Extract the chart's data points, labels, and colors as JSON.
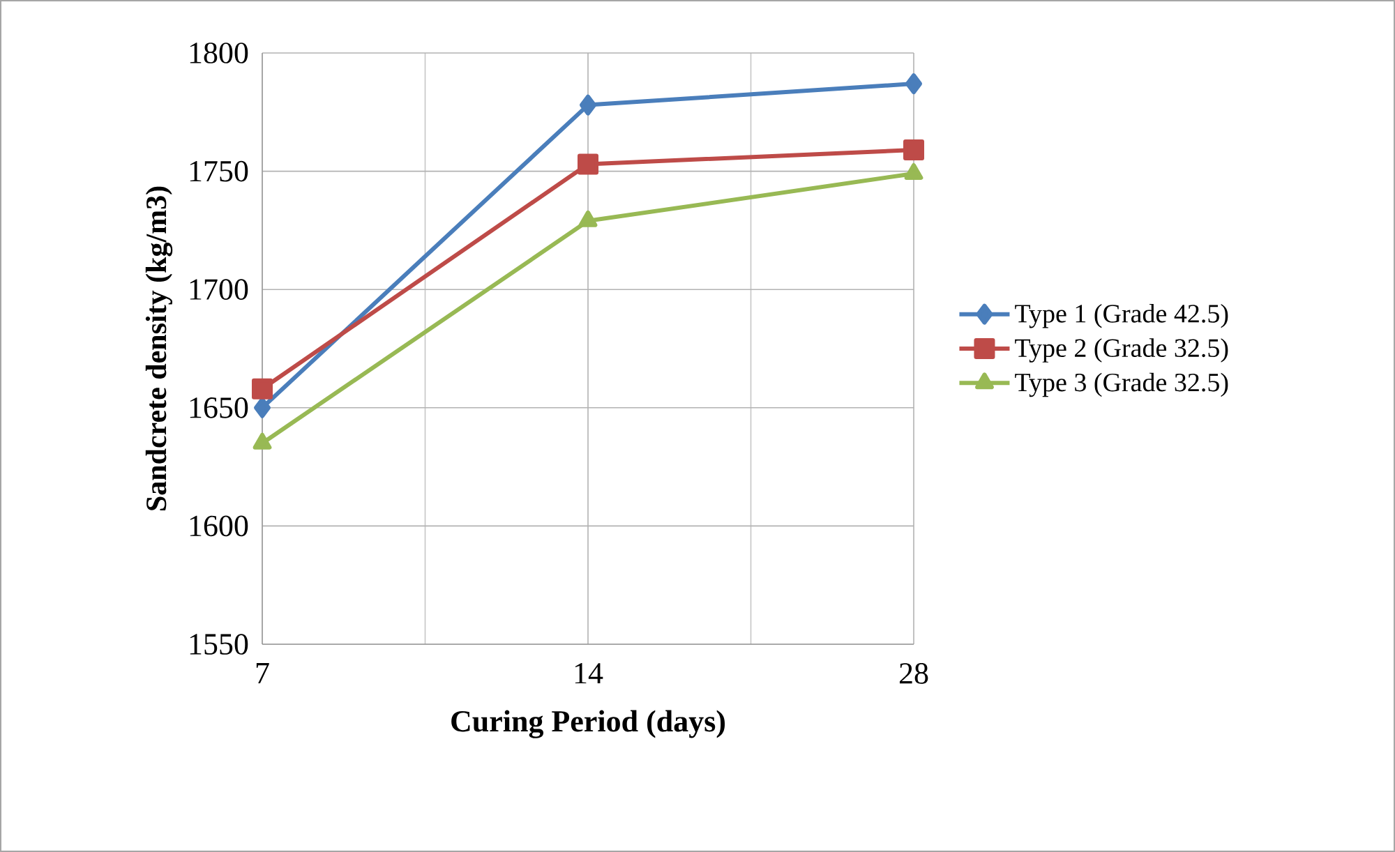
{
  "chart_data": {
    "type": "line",
    "xlabel": "Curing Period (days)",
    "ylabel": "Sandcrete density (kg/m3)",
    "categories": [
      "7",
      "14",
      "28"
    ],
    "series": [
      {
        "name": "Type 1 (Grade 42.5)",
        "color": "#4a7ebb",
        "marker": "diamond",
        "values": [
          1650,
          1778,
          1787
        ]
      },
      {
        "name": "Type 2 (Grade 32.5)",
        "color": "#be4b48",
        "marker": "square",
        "values": [
          1658,
          1753,
          1759
        ]
      },
      {
        "name": "Type 3 (Grade 32.5)",
        "color": "#98b954",
        "marker": "triangle",
        "values": [
          1635,
          1729,
          1749
        ]
      }
    ],
    "ylim": [
      1550,
      1800
    ],
    "yticks": [
      1550,
      1600,
      1650,
      1700,
      1750,
      1800
    ],
    "grid": true,
    "legend": "right",
    "line_style": "solid"
  }
}
